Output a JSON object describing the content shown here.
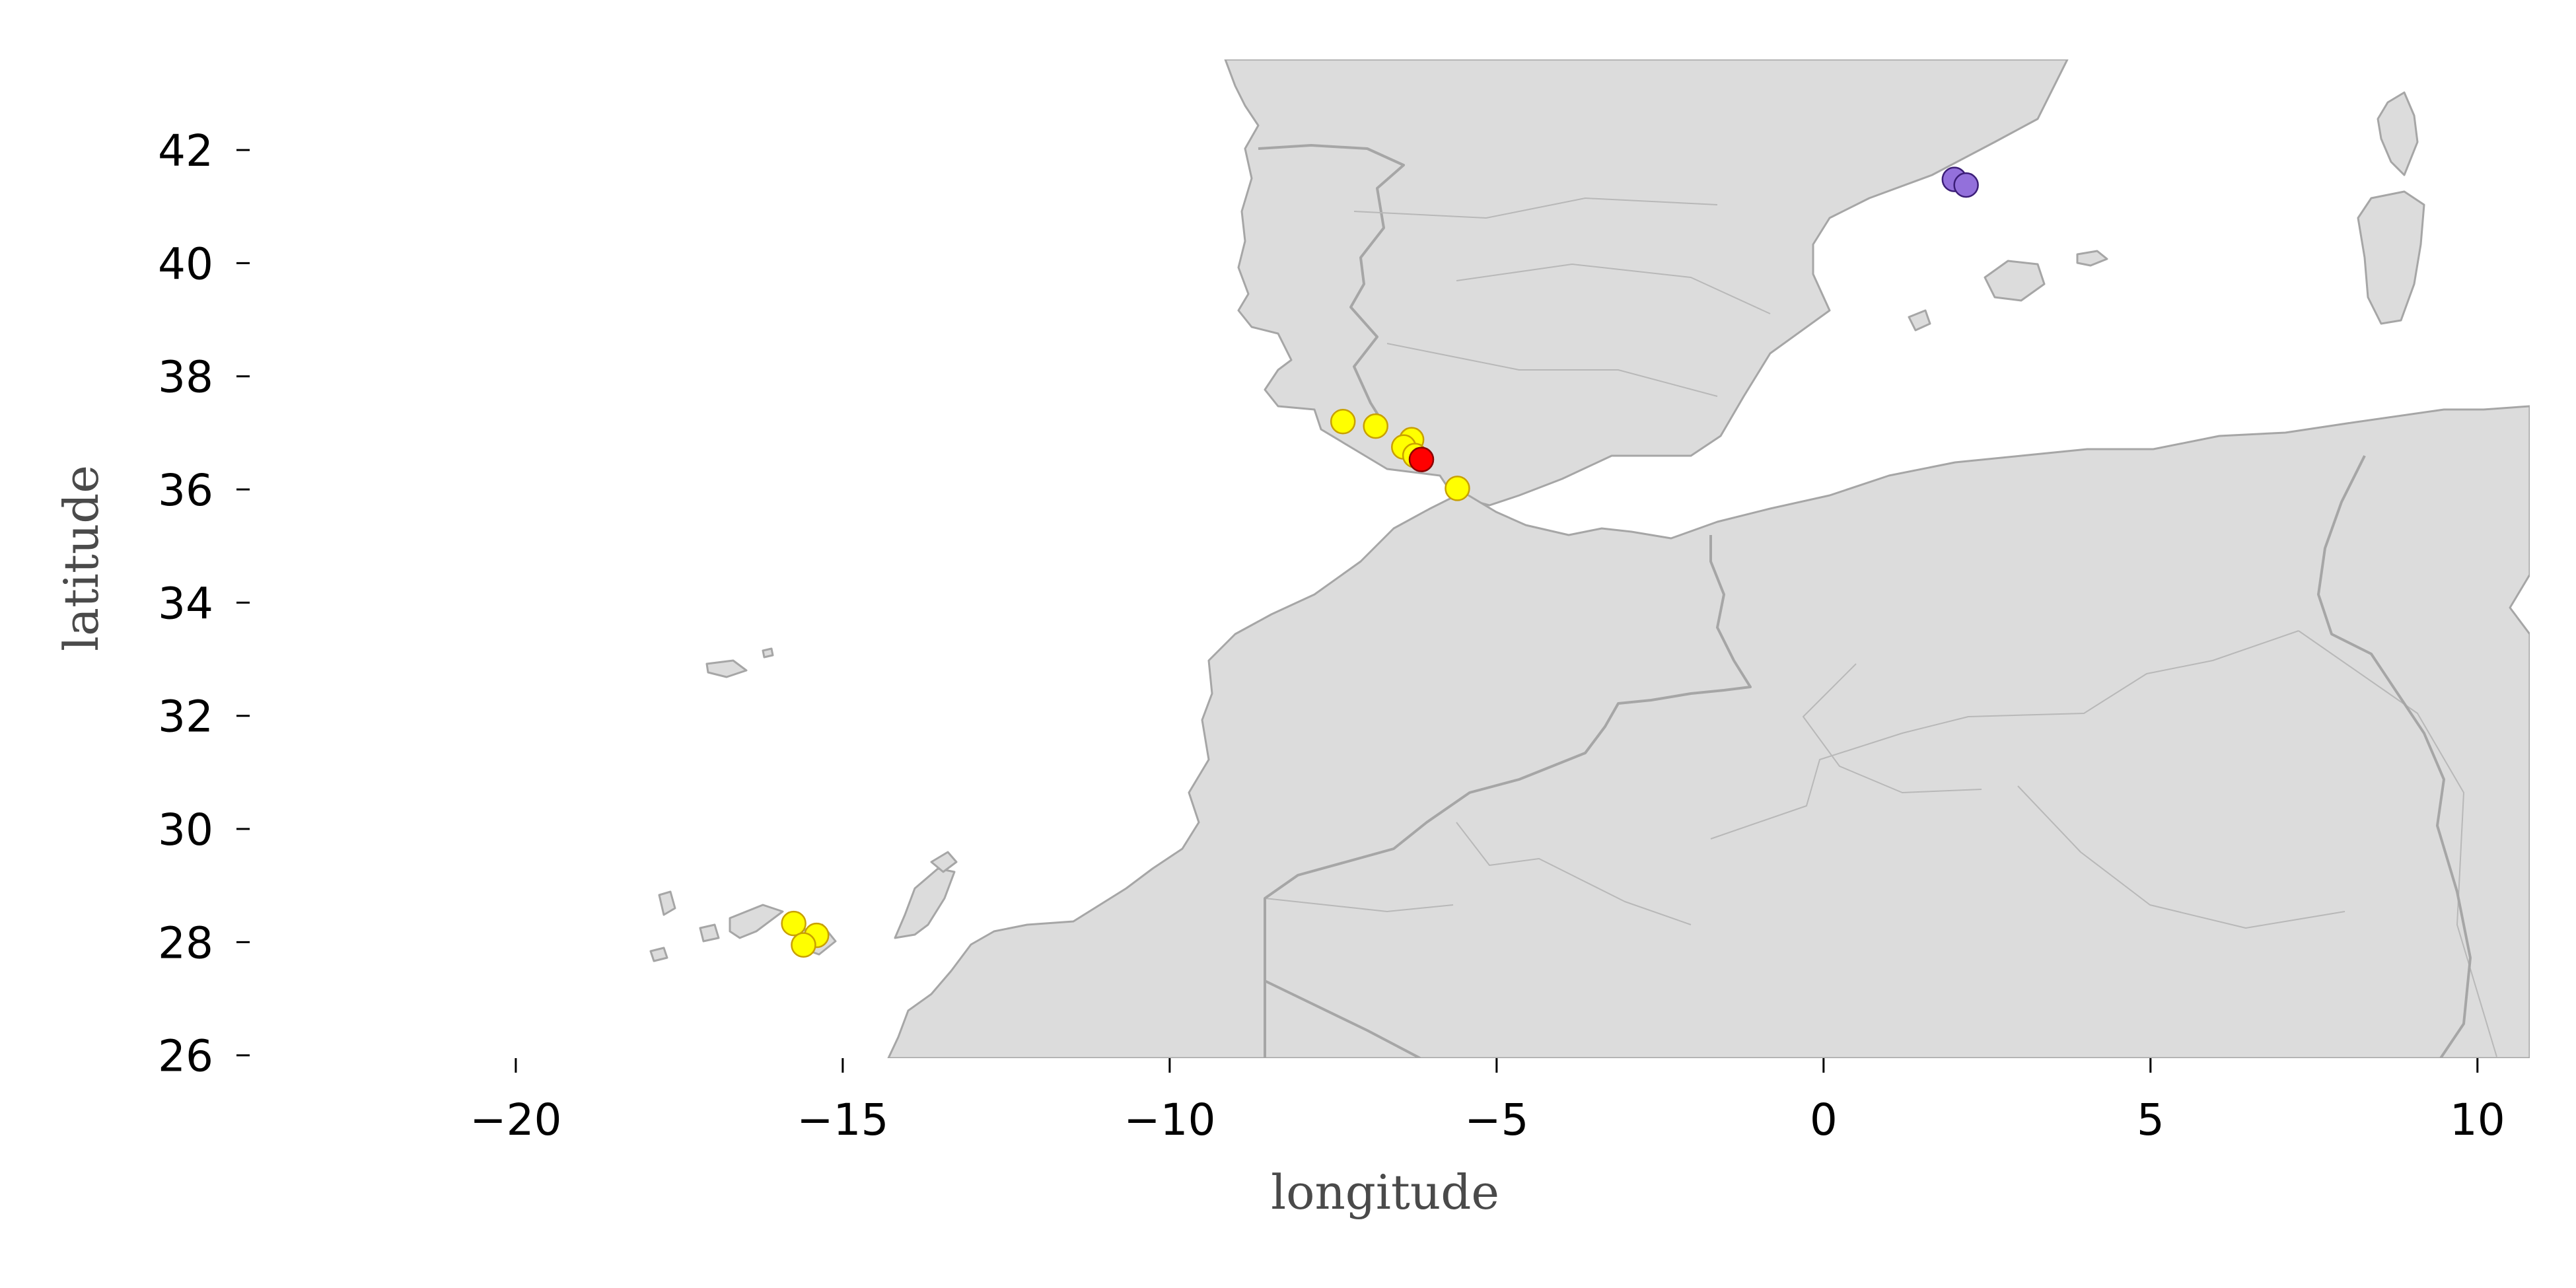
{
  "chart_data": {
    "type": "scatter",
    "xlabel": "longitude",
    "ylabel": "latitude",
    "xlim": [
      -24.1,
      10.8
    ],
    "ylim": [
      25.95,
      43.6
    ],
    "xticks": [
      -20,
      -15,
      -10,
      -5,
      0,
      5,
      10
    ],
    "yticks": [
      26,
      28,
      30,
      32,
      34,
      36,
      38,
      40,
      42
    ],
    "xtick_labels": [
      "−20",
      "−15",
      "−10",
      "−5",
      "0",
      "5",
      "10"
    ],
    "ytick_labels": [
      "26",
      "28",
      "30",
      "32",
      "34",
      "36",
      "38",
      "40",
      "42"
    ],
    "basemap": {
      "land_color": "#dcdcdc",
      "border_color": "#a6a6a6",
      "sea_color": "#ffffff"
    },
    "grid": false,
    "series": [
      {
        "color": "#ffff00",
        "edge": "#c8a000",
        "points": [
          {
            "lon": -7.35,
            "lat": 37.2
          },
          {
            "lon": -6.85,
            "lat": 37.12
          },
          {
            "lon": -6.3,
            "lat": 36.88
          },
          {
            "lon": -6.42,
            "lat": 36.75
          },
          {
            "lon": -6.25,
            "lat": 36.6
          },
          {
            "lon": -5.6,
            "lat": 36.02
          },
          {
            "lon": -15.75,
            "lat": 28.33
          },
          {
            "lon": -15.4,
            "lat": 28.12
          },
          {
            "lon": -15.6,
            "lat": 27.95
          }
        ]
      },
      {
        "color": "#ff0000",
        "edge": "#8b0000",
        "points": [
          {
            "lon": -6.15,
            "lat": 36.53
          }
        ]
      },
      {
        "color": "#9370db",
        "edge": "#3c1e78",
        "points": [
          {
            "lon": 2.0,
            "lat": 41.48
          },
          {
            "lon": 2.18,
            "lat": 41.38
          }
        ]
      }
    ]
  }
}
